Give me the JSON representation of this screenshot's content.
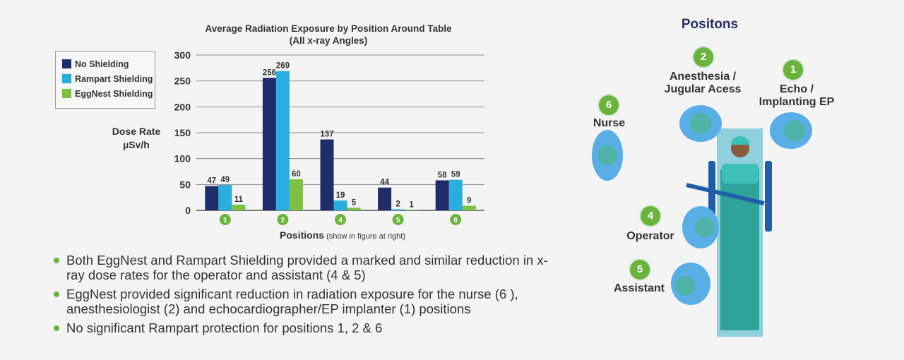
{
  "chart_data": {
    "type": "bar",
    "title": "Average Radiation Exposure by Position Around Table",
    "subtitle": "(All x-ray Angles)",
    "ylabel": [
      "Dose Rate",
      "µSv/h"
    ],
    "xlabel": "Positions",
    "xlabel_note": "(show in figure at right)",
    "categories": [
      "1",
      "2",
      "4",
      "5",
      "6"
    ],
    "ylim": [
      0,
      300
    ],
    "yticks": [
      0,
      50,
      100,
      150,
      200,
      250,
      300
    ],
    "grid": true,
    "legend_position": "top-left",
    "series": [
      {
        "name": "No Shielding",
        "color": "#1f2d6b",
        "values": [
          47,
          256,
          137,
          44,
          58
        ]
      },
      {
        "name": "Rampart Shielding",
        "color": "#2aaee0",
        "values": [
          49,
          269,
          19,
          2,
          59
        ]
      },
      {
        "name": "EggNest Shielding",
        "color": "#7cc142",
        "values": [
          11,
          60,
          5,
          1,
          9
        ]
      }
    ]
  },
  "bullets": [
    "Both EggNest and Rampart Shielding provided a marked and similar reduction in x-ray dose rates for the operator and assistant (4 & 5)",
    "EggNest provided significant reduction in radiation exposure for the nurse (6 ), anesthesiologist (2) and echocardiographer/EP implanter (1) positions",
    "No significant Rampart protection for positions 1, 2 & 6"
  ],
  "figure": {
    "title": "Positons",
    "positions": [
      {
        "num": "1",
        "label": "Echo / Implanting EP"
      },
      {
        "num": "2",
        "label": "Anesthesia / Jugular Acess"
      },
      {
        "num": "4",
        "label": "Operator"
      },
      {
        "num": "5",
        "label": "Assistant"
      },
      {
        "num": "6",
        "label": "Nurse"
      }
    ]
  }
}
